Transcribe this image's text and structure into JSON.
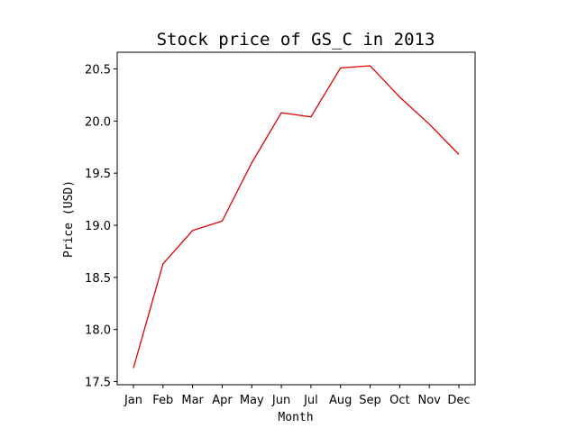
{
  "chart_data": {
    "type": "line",
    "title": "Stock price of GS_C in 2013",
    "xlabel": "Month",
    "ylabel": "Price (USD)",
    "categories": [
      "Jan",
      "Feb",
      "Mar",
      "Apr",
      "May",
      "Jun",
      "Jul",
      "Aug",
      "Sep",
      "Oct",
      "Nov",
      "Dec"
    ],
    "series": [
      {
        "values": [
          17.63,
          18.63,
          18.95,
          19.04,
          19.6,
          20.08,
          20.04,
          20.51,
          20.53,
          20.23,
          19.97,
          19.68
        ],
        "color": "#e00000"
      }
    ],
    "ylim": [
      17.47,
      20.66
    ],
    "yticks": [
      17.5,
      18.0,
      18.5,
      19.0,
      19.5,
      20.0,
      20.5
    ],
    "ytick_labels": [
      "17.5",
      "18.0",
      "18.5",
      "19.0",
      "19.5",
      "20.0",
      "20.5"
    ],
    "grid": false,
    "legend": "none"
  }
}
